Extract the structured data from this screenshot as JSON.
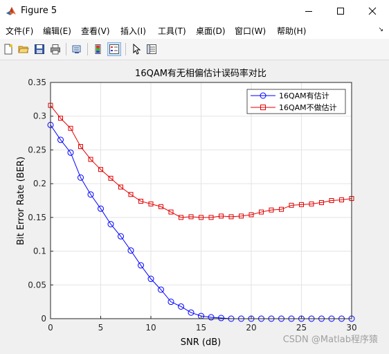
{
  "window": {
    "title": "Figure 5"
  },
  "menu": [
    "文件(F)",
    "编辑(E)",
    "查看(V)",
    "插入(I)",
    "工具(T)",
    "桌面(D)",
    "窗口(W)",
    "帮助(H)"
  ],
  "toolbar_icons": [
    "new-file-icon",
    "open-folder-icon",
    "save-icon",
    "print-icon",
    "print-preview-icon",
    "colorbar-icon",
    "legend-icon",
    "pointer-icon",
    "property-inspector-icon"
  ],
  "watermark": "CSDN @Matlab程序猿",
  "colors": {
    "ber_line": "#0000ff",
    "no_est_line": "#e00000"
  },
  "chart_data": {
    "type": "line",
    "title": "16QAM有无相偏估计误码率对比",
    "xlabel": "SNR (dB)",
    "ylabel": "Bit Error Rate (BER)",
    "xlim": [
      0,
      30
    ],
    "ylim": [
      0,
      0.35
    ],
    "xticks": [
      "0",
      "5",
      "10",
      "15",
      "20",
      "25",
      "30"
    ],
    "yticks": [
      "0",
      "0.05",
      "0.1",
      "0.15",
      "0.2",
      "0.25",
      "0.3",
      "0.35"
    ],
    "grid": true,
    "legend_position": "top-right",
    "x": [
      0,
      1,
      2,
      3,
      4,
      5,
      6,
      7,
      8,
      9,
      10,
      11,
      12,
      13,
      14,
      15,
      16,
      17,
      18,
      19,
      20,
      21,
      22,
      23,
      24,
      25,
      26,
      27,
      28,
      29,
      30
    ],
    "series": [
      {
        "name": "16QAM有估计",
        "marker": "circle",
        "color": "#0000ff",
        "values": [
          0.287,
          0.265,
          0.246,
          0.209,
          0.184,
          0.163,
          0.14,
          0.122,
          0.101,
          0.079,
          0.059,
          0.043,
          0.025,
          0.018,
          0.009,
          0.004,
          0.002,
          0.001,
          0,
          0,
          0,
          0,
          0,
          0,
          0,
          0,
          0,
          0,
          0,
          0,
          0
        ]
      },
      {
        "name": "16QAM不做估计",
        "marker": "square",
        "color": "#e00000",
        "values": [
          0.316,
          0.297,
          0.282,
          0.255,
          0.236,
          0.221,
          0.208,
          0.195,
          0.184,
          0.174,
          0.17,
          0.166,
          0.158,
          0.15,
          0.151,
          0.15,
          0.15,
          0.152,
          0.151,
          0.152,
          0.154,
          0.158,
          0.161,
          0.162,
          0.168,
          0.169,
          0.17,
          0.172,
          0.175,
          0.176,
          0.178
        ]
      }
    ]
  }
}
